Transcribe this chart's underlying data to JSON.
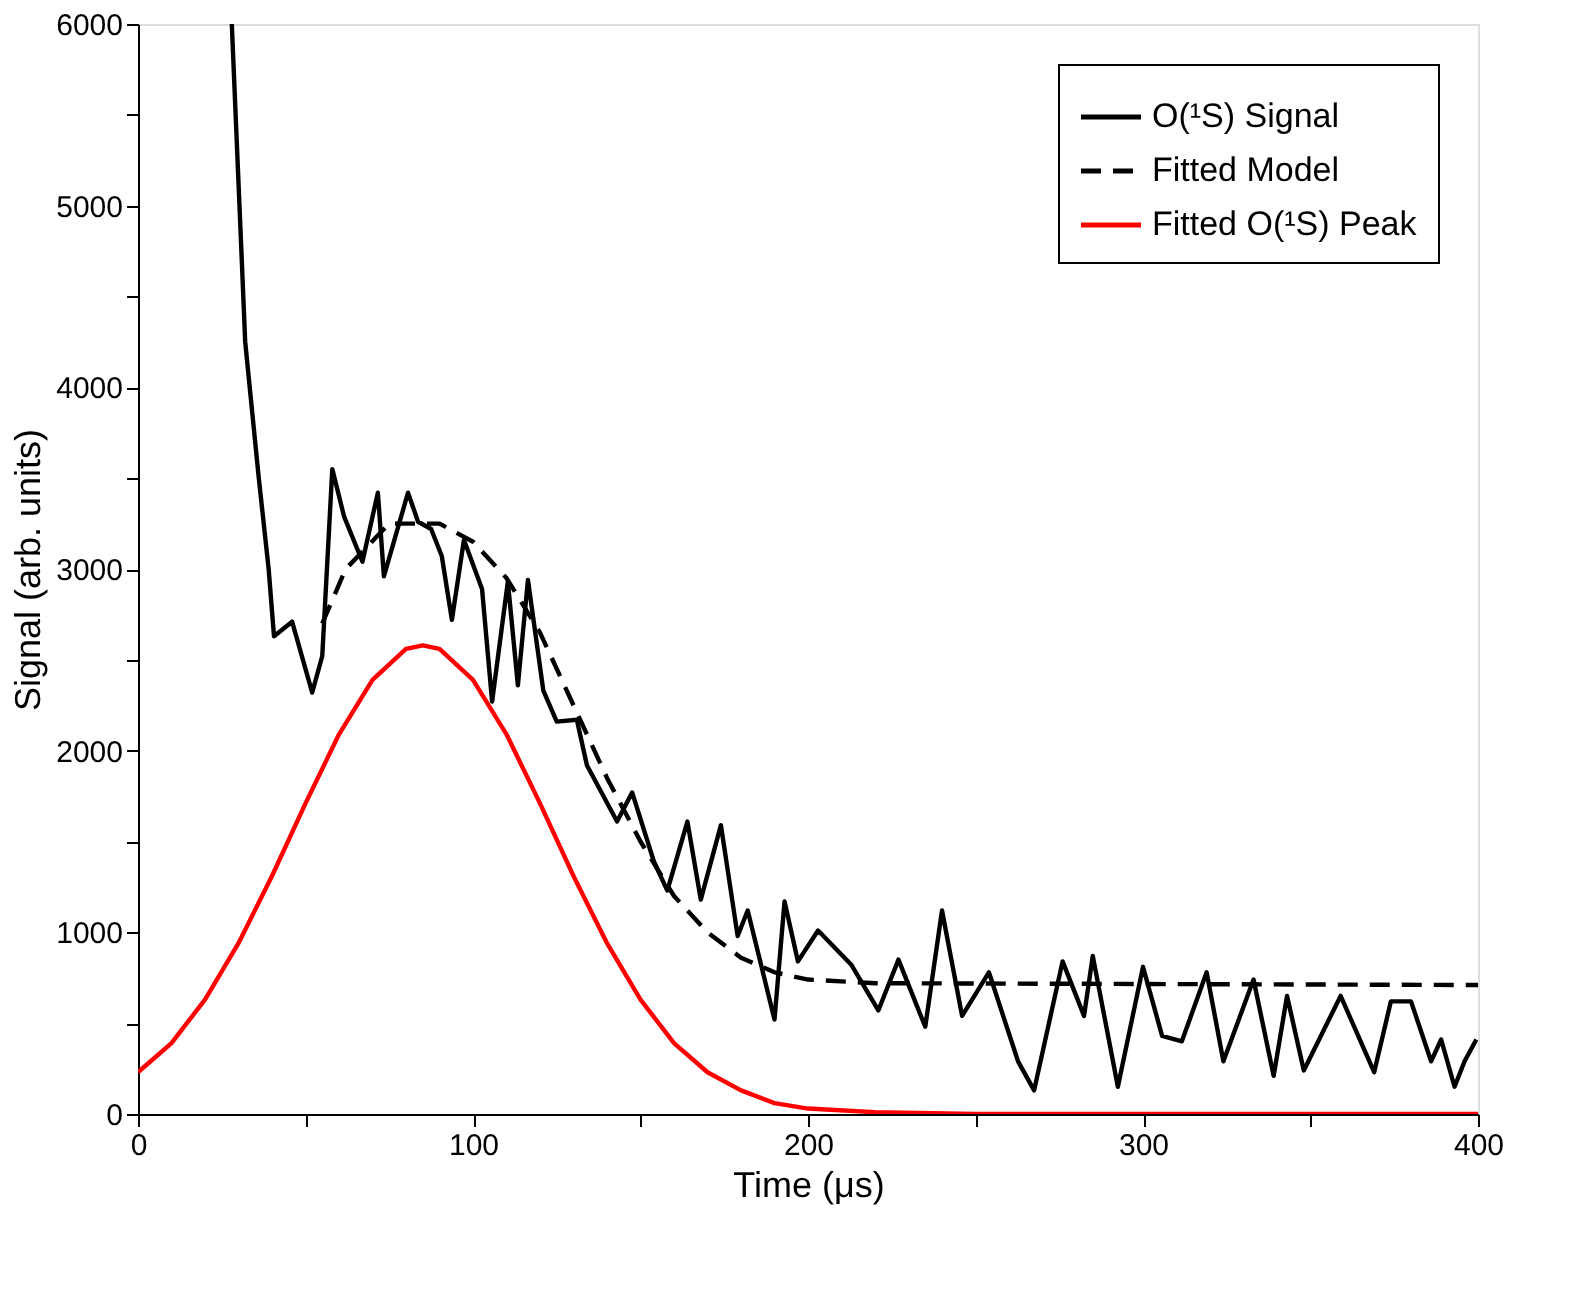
{
  "chart_data": {
    "type": "line",
    "xlabel": "Time (μs)",
    "ylabel": "Signal (arb. units)",
    "xlim": [
      0,
      400
    ],
    "ylim": [
      0,
      6000
    ],
    "xticks": [
      0,
      {
        "value": 50,
        "label": null
      },
      100,
      {
        "value": 150,
        "label": null
      },
      200,
      {
        "value": 250,
        "label": null
      },
      300,
      {
        "value": 350,
        "label": null
      },
      400
    ],
    "yticks": [
      0,
      {
        "value": 500,
        "label": null
      },
      1000,
      {
        "value": 1500,
        "label": null
      },
      2000,
      {
        "value": 2500,
        "label": null
      },
      3000,
      {
        "value": 3500,
        "label": null
      },
      4000,
      {
        "value": 4500,
        "label": null
      },
      5000,
      {
        "value": 5500,
        "label": null
      },
      6000
    ],
    "grid": false,
    "legend": "top right",
    "marker": "none",
    "series": [
      {
        "name": "O(¹S) Signal",
        "color": "#000000",
        "line_style": "solid",
        "x": [
          28,
          31,
          32,
          36,
          39,
          40.6,
          46,
          52,
          55,
          58,
          61.5,
          67,
          71.6,
          73.4,
          80.6,
          83.6,
          87.5,
          90.7,
          93.7,
          97.3,
          102.7,
          105.7,
          110.4,
          113.4,
          116.4,
          121,
          125,
          131,
          134,
          143,
          147.5,
          154,
          158,
          164,
          168,
          174,
          179,
          182,
          190,
          193,
          197,
          203,
          213,
          221,
          227,
          235,
          240,
          246,
          254,
          262.7,
          267.5,
          276,
          282.4,
          285,
          292.5,
          300,
          305.7,
          311.6,
          319,
          324,
          333,
          339,
          343,
          348,
          359,
          369,
          374,
          380,
          386,
          389,
          393,
          396,
          399.5
        ],
        "values": [
          6000,
          4690,
          4250,
          3510,
          3000,
          2630,
          2710,
          2320,
          2520,
          3550,
          3290,
          3040,
          3420,
          2960,
          3420,
          3260,
          3220,
          3070,
          2720,
          3160,
          2890,
          2270,
          2930,
          2360,
          2940,
          2330,
          2160,
          2170,
          1920,
          1610,
          1770,
          1390,
          1230,
          1610,
          1180,
          1590,
          980,
          1120,
          520,
          1170,
          840,
          1010,
          820,
          570,
          850,
          480,
          1120,
          540,
          780,
          290,
          130,
          840,
          540,
          870,
          150,
          810,
          430,
          400,
          780,
          290,
          740,
          210,
          650,
          240,
          650,
          230,
          620,
          620,
          290,
          410,
          150,
          290,
          410
        ]
      },
      {
        "name": "Fitted Model",
        "color": "#000000",
        "line_style": "dashed",
        "x": [
          55,
          62,
          75,
          90,
          100,
          110,
          120,
          130,
          140,
          150,
          160,
          170,
          180,
          190,
          200,
          220,
          400
        ],
        "values": [
          2700,
          3000,
          3250,
          3250,
          3150,
          2950,
          2650,
          2250,
          1850,
          1500,
          1200,
          1000,
          860,
          780,
          740,
          720,
          710
        ]
      },
      {
        "name": "Fitted O(¹S) Peak",
        "color": "#ff0000",
        "line_style": "solid",
        "x": [
          0,
          10,
          20,
          30,
          40,
          50,
          60,
          70,
          80,
          85,
          90,
          100,
          110,
          120,
          130,
          140,
          150,
          160,
          170,
          180,
          190,
          200,
          220,
          250,
          400
        ],
        "values": [
          230,
          390,
          630,
          940,
          1310,
          1710,
          2090,
          2390,
          2560,
          2580,
          2560,
          2390,
          2090,
          1710,
          1310,
          940,
          630,
          390,
          230,
          130,
          60,
          30,
          10,
          0,
          0
        ]
      }
    ]
  }
}
